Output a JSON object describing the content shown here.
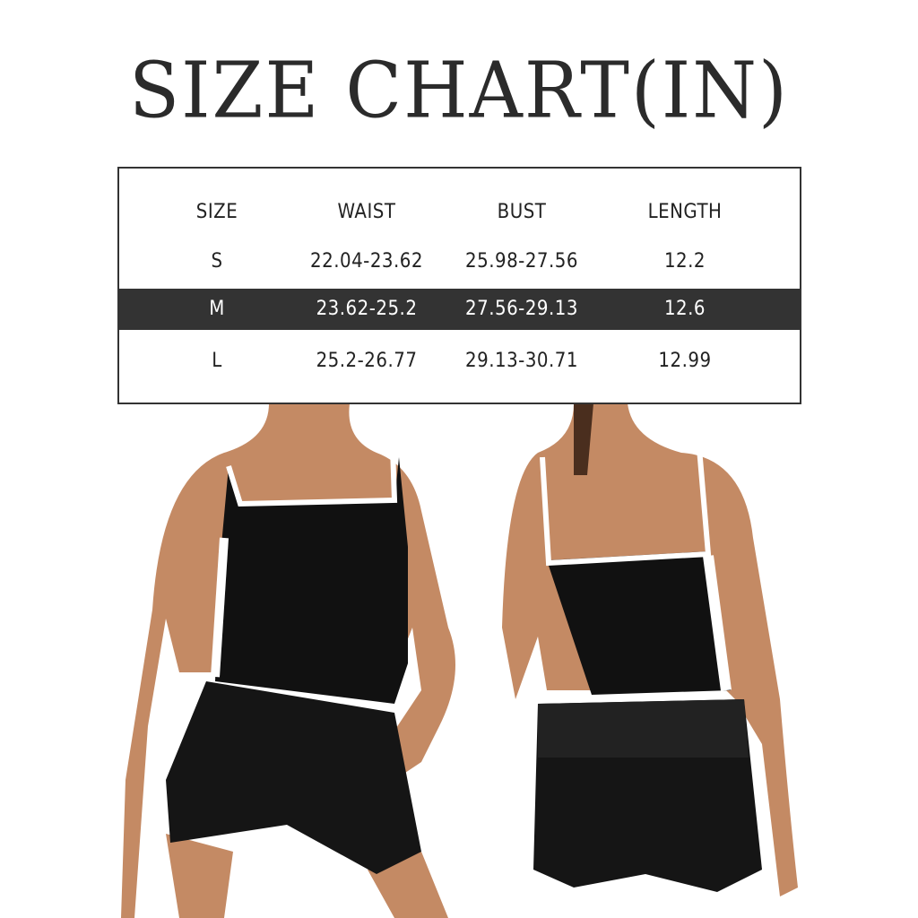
{
  "title": "SIZE CHART(IN)",
  "table": {
    "headers": [
      "SIZE",
      "WAIST",
      "BUST",
      "LENGTH"
    ],
    "rows": [
      {
        "cells": [
          "S",
          "22.04-23.62",
          "25.98-27.56",
          "12.2"
        ],
        "highlighted": false
      },
      {
        "cells": [
          "M",
          "23.62-25.2",
          "27.56-29.13",
          "12.6"
        ],
        "highlighted": true
      },
      {
        "cells": [
          "L",
          "25.2-26.77",
          "29.13-30.71",
          "12.99"
        ],
        "highlighted": false
      }
    ],
    "highlight_color": "#333333"
  },
  "colors": {
    "garment": "#111111",
    "trim": "#ffffff",
    "skin": "#c48a64"
  }
}
